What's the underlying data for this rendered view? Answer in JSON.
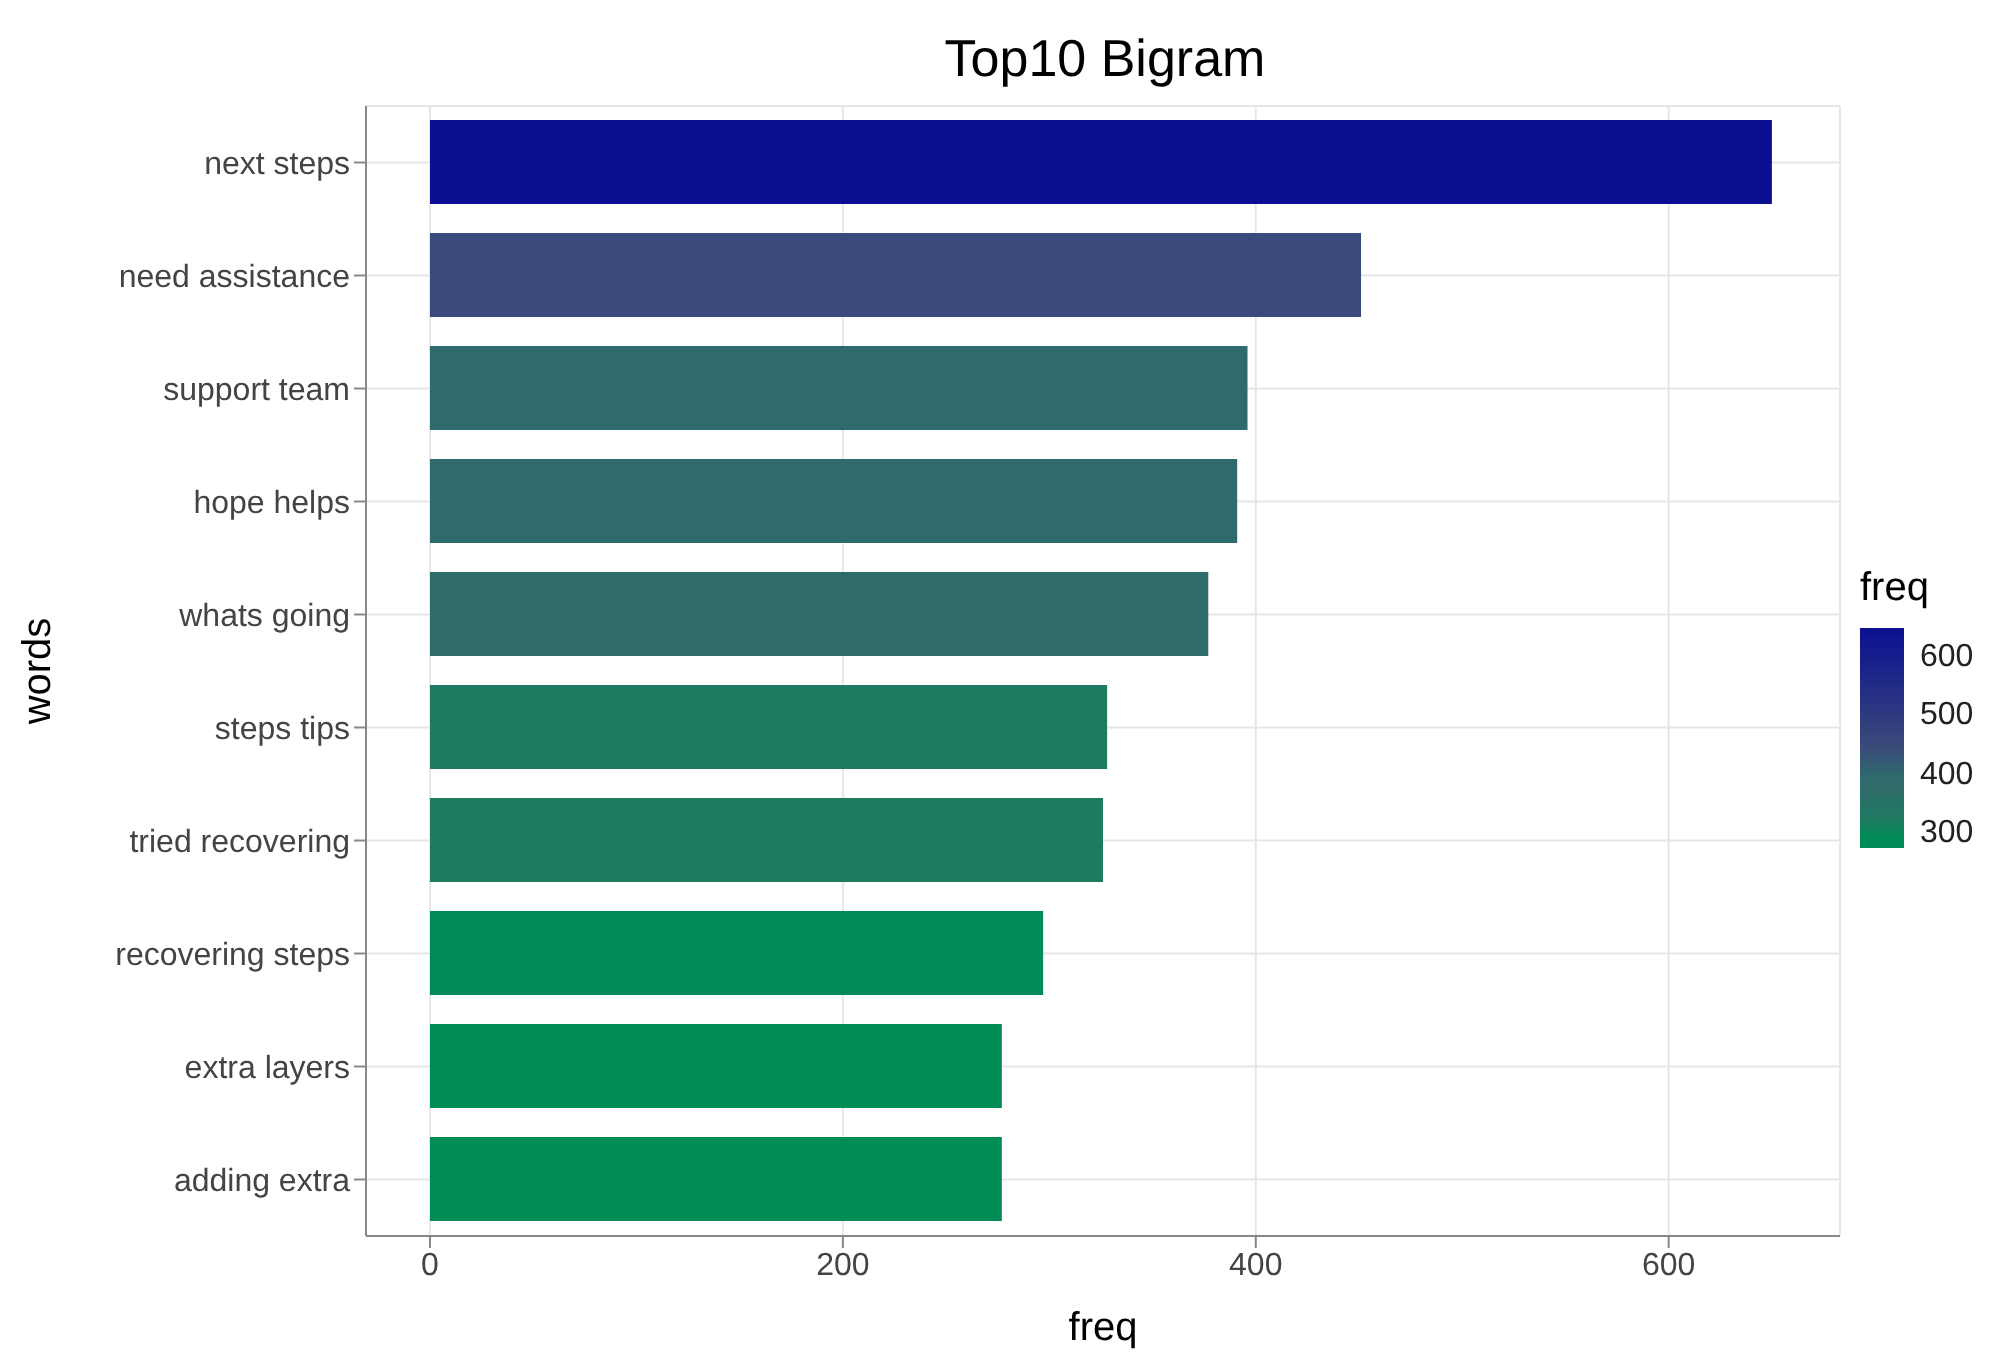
{
  "chart_data": {
    "type": "bar",
    "orientation": "horizontal",
    "title": "Top10 Bigram",
    "xlabel": "freq",
    "ylabel": "words",
    "clabel": "freq",
    "categories": [
      "next steps",
      "need assistance",
      "support team",
      "hope helps",
      "whats going",
      "steps tips",
      "tried recovering",
      "recovering steps",
      "extra layers",
      "adding extra"
    ],
    "values": [
      650,
      451,
      396,
      391,
      377,
      328,
      326,
      297,
      277,
      277
    ],
    "colors": [
      "#0a0f91",
      "#3a4a7a",
      "#2f6a6d",
      "#2f6a6c",
      "#2f6b69",
      "#1f7a62",
      "#1f7a62",
      "#008a58",
      "#008c55",
      "#008c55"
    ],
    "xlim": [
      -31,
      683
    ],
    "xticks": [
      0,
      200,
      400,
      600
    ],
    "clim": [
      277,
      650
    ],
    "cticks": [
      300,
      400,
      500,
      600
    ],
    "grid": true
  }
}
